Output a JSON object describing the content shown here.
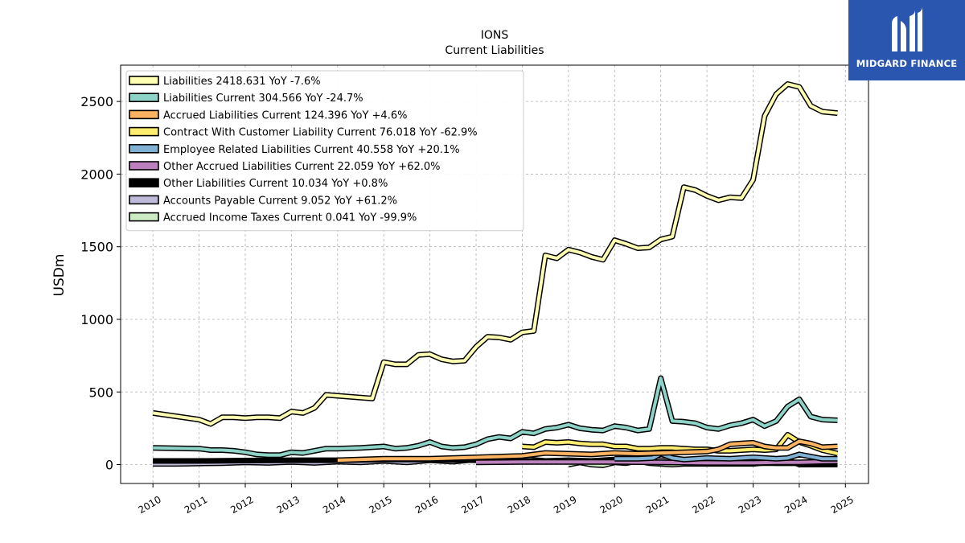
{
  "brand": {
    "name": "MIDGARD FINANCE",
    "bg_color": "#2a56b0"
  },
  "chart_data": {
    "type": "line",
    "title": "IONS",
    "subtitle": "Current  Liabilities",
    "ylabel": "USDm",
    "xlabel": "",
    "xlim": [
      2009.3,
      2025.5
    ],
    "ylim": [
      -130,
      2750
    ],
    "x_ticks": [
      2010,
      2011,
      2012,
      2013,
      2014,
      2015,
      2016,
      2017,
      2018,
      2019,
      2020,
      2021,
      2022,
      2023,
      2024,
      2025
    ],
    "y_ticks": [
      0,
      500,
      1000,
      1500,
      2000,
      2500
    ],
    "grid": true,
    "legend_position": "top-left",
    "series": [
      {
        "name": "Liabilities",
        "legend_label": "Liabilities  2418.631 YoY -7.6%",
        "color": "#ffffb3",
        "x": [
          2010.0,
          2011.0,
          2011.25,
          2011.5,
          2011.75,
          2012.0,
          2012.25,
          2012.5,
          2012.75,
          2013.0,
          2013.25,
          2013.5,
          2013.75,
          2014.75,
          2015.0,
          2015.25,
          2015.5,
          2015.75,
          2016.0,
          2016.25,
          2016.5,
          2016.75,
          2017.0,
          2017.25,
          2017.5,
          2017.75,
          2018.0,
          2018.25,
          2018.5,
          2018.75,
          2019.0,
          2019.25,
          2019.5,
          2019.75,
          2020.0,
          2020.25,
          2020.5,
          2020.75,
          2021.0,
          2021.25,
          2021.5,
          2021.75,
          2022.0,
          2022.25,
          2022.5,
          2022.75,
          2023.0,
          2023.25,
          2023.5,
          2023.75,
          2024.0,
          2024.25,
          2024.5,
          2024.83
        ],
        "y": [
          355,
          310,
          280,
          325,
          325,
          320,
          325,
          325,
          320,
          365,
          355,
          390,
          480,
          455,
          705,
          690,
          690,
          755,
          760,
          725,
          710,
          715,
          810,
          880,
          875,
          860,
          910,
          920,
          1440,
          1420,
          1480,
          1460,
          1430,
          1410,
          1545,
          1520,
          1490,
          1495,
          1550,
          1570,
          1910,
          1890,
          1850,
          1820,
          1840,
          1835,
          1960,
          2400,
          2550,
          2620,
          2600,
          2470,
          2430,
          2420
        ]
      },
      {
        "name": "Liabilities Current",
        "legend_label": "Liabilities Current  304.566 YoY -24.7%",
        "color": "#8dd3c7",
        "x": [
          2010.0,
          2011.0,
          2011.25,
          2011.5,
          2011.75,
          2012.0,
          2012.25,
          2012.5,
          2012.75,
          2013.0,
          2013.25,
          2013.5,
          2013.75,
          2014.0,
          2014.5,
          2014.75,
          2015.0,
          2015.25,
          2015.5,
          2015.75,
          2016.0,
          2016.25,
          2016.5,
          2016.75,
          2017.0,
          2017.25,
          2017.5,
          2017.75,
          2018.0,
          2018.25,
          2018.5,
          2018.75,
          2019.0,
          2019.25,
          2019.5,
          2019.75,
          2020.0,
          2020.25,
          2020.5,
          2020.75,
          2021.0,
          2021.25,
          2021.5,
          2021.75,
          2022.0,
          2022.25,
          2022.5,
          2022.75,
          2023.0,
          2023.25,
          2023.5,
          2023.75,
          2024.0,
          2024.25,
          2024.5,
          2024.83
        ],
        "y": [
          115,
          110,
          100,
          100,
          95,
          85,
          70,
          65,
          65,
          85,
          80,
          95,
          110,
          110,
          115,
          120,
          125,
          110,
          115,
          130,
          155,
          125,
          115,
          120,
          140,
          175,
          190,
          180,
          225,
          215,
          245,
          255,
          275,
          250,
          240,
          235,
          265,
          255,
          235,
          245,
          595,
          300,
          295,
          285,
          255,
          245,
          270,
          285,
          310,
          265,
          300,
          400,
          450,
          330,
          310,
          305
        ]
      },
      {
        "name": "Accrued Liabilities Current",
        "legend_label": "Accrued Liabilities Current  124.396 YoY +4.6%",
        "color": "#fdb462",
        "x": [
          2014.0,
          2015.0,
          2016.0,
          2017.0,
          2017.5,
          2018.0,
          2018.5,
          2019.0,
          2019.5,
          2020.0,
          2020.5,
          2021.0,
          2021.5,
          2022.0,
          2022.25,
          2022.5,
          2022.75,
          2023.0,
          2023.25,
          2023.5,
          2023.75,
          2024.0,
          2024.25,
          2024.5,
          2024.83
        ],
        "y": [
          30,
          40,
          40,
          50,
          55,
          60,
          80,
          75,
          70,
          80,
          75,
          80,
          85,
          90,
          105,
          140,
          145,
          150,
          125,
          115,
          115,
          160,
          145,
          120,
          125
        ]
      },
      {
        "name": "Contract With Customer Liability Current",
        "legend_label": "Contract With Customer Liability Current  76.018 YoY -62.9%",
        "color": "#ffed6f",
        "x": [
          2018.0,
          2018.25,
          2018.5,
          2018.75,
          2019.0,
          2019.25,
          2019.5,
          2019.75,
          2020.0,
          2020.25,
          2020.5,
          2020.75,
          2021.0,
          2021.25,
          2021.5,
          2021.75,
          2022.0,
          2022.25,
          2022.5,
          2022.75,
          2023.0,
          2023.25,
          2023.5,
          2023.75,
          2024.0,
          2024.25,
          2024.5,
          2024.83
        ],
        "y": [
          125,
          120,
          155,
          150,
          155,
          145,
          140,
          140,
          125,
          125,
          110,
          110,
          115,
          115,
          110,
          105,
          105,
          95,
          95,
          100,
          105,
          100,
          105,
          205,
          155,
          130,
          100,
          76
        ]
      },
      {
        "name": "Employee Related Liabilities Current",
        "legend_label": "Employee Related Liabilities Current  40.558 YoY +20.1%",
        "color": "#80b1d3",
        "x": [
          2020.0,
          2020.5,
          2020.83,
          2021.0,
          2021.25,
          2021.5,
          2022.0,
          2022.5,
          2023.0,
          2023.5,
          2023.75,
          2024.0,
          2024.5,
          2024.83
        ],
        "y": [
          40,
          40,
          45,
          75,
          45,
          35,
          45,
          40,
          50,
          40,
          45,
          70,
          40,
          40
        ]
      },
      {
        "name": "Other Accrued Liabilities Current",
        "legend_label": "Other Accrued Liabilities Current  22.059 YoY +62.0%",
        "color": "#bc80bd",
        "x": [
          2017.0,
          2018.0,
          2019.0,
          2020.0,
          2021.0,
          2022.0,
          2023.0,
          2023.5,
          2024.0,
          2024.5,
          2024.83
        ],
        "y": [
          15,
          18,
          18,
          18,
          15,
          12,
          12,
          15,
          15,
          20,
          22
        ]
      },
      {
        "name": "Other Liabilities Current",
        "legend_label": "Other Liabilities Current  10.034 YoY +0.8%",
        "color": "#000000",
        "x": [
          2010.0,
          2011.0,
          2012.0,
          2013.0,
          2014.0,
          2015.0,
          2016.0,
          2017.0,
          2018.0,
          2019.0,
          2020.0,
          2021.0,
          2022.0,
          2023.0,
          2024.0,
          2024.83
        ],
        "y": [
          25,
          25,
          28,
          30,
          30,
          35,
          35,
          30,
          25,
          20,
          30,
          15,
          15,
          10,
          10,
          10
        ]
      },
      {
        "name": "Accounts Payable Current",
        "legend_label": "Accounts Payable Current  9.052 YoY +61.2%",
        "color": "#bebada",
        "x": [
          2010.0,
          2010.5,
          2011.0,
          2011.5,
          2012.0,
          2012.5,
          2013.0,
          2013.5,
          2014.0,
          2014.5,
          2015.0,
          2015.5,
          2016.0,
          2016.5,
          2017.0,
          2017.5,
          2018.0,
          2018.5,
          2019.0,
          2019.5,
          2020.0,
          2020.5,
          2021.0,
          2021.5,
          2022.0,
          2022.5,
          2023.0,
          2023.5,
          2024.0,
          2024.5,
          2024.83
        ],
        "y": [
          5,
          5,
          8,
          10,
          15,
          12,
          18,
          12,
          20,
          15,
          25,
          15,
          30,
          20,
          35,
          25,
          40,
          25,
          30,
          25,
          35,
          25,
          30,
          20,
          25,
          15,
          20,
          10,
          10,
          8,
          9
        ]
      },
      {
        "name": "Accrued Income Taxes Current",
        "legend_label": "Accrued Income Taxes Current  0.041 YoY -99.9%",
        "color": "#ccebc5",
        "x": [
          2019.0,
          2019.25,
          2019.5,
          2019.75,
          2020.0,
          2020.25,
          2020.5,
          2020.75,
          2021.0,
          2021.25,
          2021.5,
          2022.0,
          2022.5,
          2023.0,
          2023.5,
          2023.75,
          2024.0,
          2024.5,
          2024.83
        ],
        "y": [
          0,
          15,
          0,
          -5,
          15,
          10,
          25,
          10,
          5,
          0,
          5,
          5,
          5,
          5,
          20,
          30,
          0,
          0,
          0
        ]
      }
    ]
  }
}
